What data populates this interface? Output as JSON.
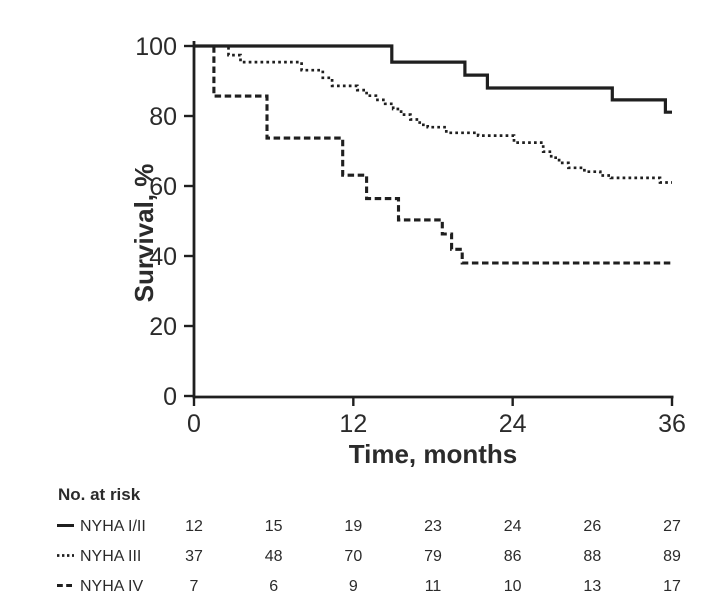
{
  "colors": {
    "background": "#ffffff",
    "ink": "#1f1f1f",
    "text": "#2b2b2b"
  },
  "chart": {
    "y_axis_title": "Survival, %",
    "x_axis_title": "Time, months"
  },
  "chart_data": {
    "type": "line",
    "subtype": "kaplan-meier-step",
    "title": "",
    "xlabel": "Time, months",
    "ylabel": "Survival, %",
    "xlim": [
      0,
      36
    ],
    "ylim": [
      0,
      100
    ],
    "x_ticks": [
      0,
      12,
      24,
      36
    ],
    "y_ticks": [
      100,
      80,
      60,
      40,
      20,
      0
    ],
    "grid": false,
    "legend_position": "bottom-left-risk-table",
    "series": [
      {
        "name": "NYHA I/II",
        "line_style": "solid",
        "start_value": 100,
        "end_time": 36,
        "steps": [
          [
            14.9,
            95.4
          ],
          [
            20.4,
            91.7
          ],
          [
            22.1,
            88.0
          ],
          [
            31.5,
            84.6
          ],
          [
            35.5,
            81.1
          ]
        ]
      },
      {
        "name": "NYHA III",
        "line_style": "dotted",
        "start_value": 100,
        "end_time": 36,
        "steps": [
          [
            2.6,
            97.4
          ],
          [
            3.5,
            95.4
          ],
          [
            8.1,
            93.1
          ],
          [
            9.7,
            90.9
          ],
          [
            10.4,
            88.6
          ],
          [
            12.3,
            87.4
          ],
          [
            13.0,
            85.8
          ],
          [
            13.7,
            84.6
          ],
          [
            14.4,
            83.5
          ],
          [
            15.0,
            82.0
          ],
          [
            15.6,
            80.4
          ],
          [
            16.3,
            79.0
          ],
          [
            17.0,
            77.5
          ],
          [
            17.6,
            76.8
          ],
          [
            19.0,
            75.2
          ],
          [
            21.4,
            74.4
          ],
          [
            24.1,
            72.4
          ],
          [
            26.3,
            69.8
          ],
          [
            26.9,
            68.1
          ],
          [
            27.5,
            66.6
          ],
          [
            28.2,
            65.2
          ],
          [
            29.4,
            64.1
          ],
          [
            30.6,
            63.0
          ],
          [
            31.4,
            62.3
          ],
          [
            35.1,
            61.0
          ]
        ]
      },
      {
        "name": "NYHA IV",
        "line_style": "dashed",
        "start_value": 100,
        "end_time": 36,
        "steps": [
          [
            1.5,
            85.7
          ],
          [
            5.5,
            73.7
          ],
          [
            11.2,
            63.1
          ],
          [
            13.0,
            56.4
          ],
          [
            15.4,
            50.3
          ],
          [
            18.7,
            46.3
          ],
          [
            19.4,
            41.9
          ],
          [
            20.2,
            38.0
          ]
        ]
      }
    ]
  },
  "risk_table": {
    "title": "No. at risk",
    "times": [
      0,
      6,
      12,
      18,
      24,
      30,
      36
    ],
    "rows": [
      {
        "label": "NYHA I/II",
        "marker": "solid",
        "marker_icon": "solid-line-icon",
        "counts": [
          12,
          15,
          19,
          23,
          24,
          26,
          27
        ]
      },
      {
        "label": "NYHA III",
        "marker": "dotted",
        "marker_icon": "dotted-line-icon",
        "counts": [
          37,
          48,
          70,
          79,
          86,
          88,
          89
        ]
      },
      {
        "label": "NYHA IV",
        "marker": "dashed",
        "marker_icon": "dashed-line-icon",
        "counts": [
          7,
          6,
          9,
          11,
          10,
          13,
          17
        ]
      }
    ]
  }
}
